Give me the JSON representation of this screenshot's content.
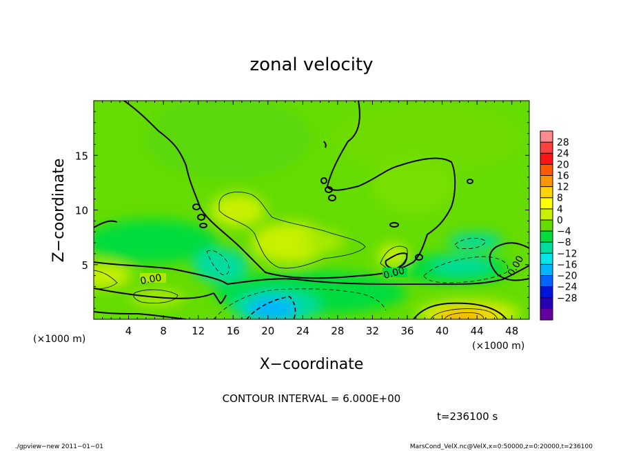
{
  "chart_data": {
    "type": "heatmap",
    "title": "zonal velocity",
    "xlabel": "X−coordinate",
    "ylabel": "Z−coordinate",
    "x_unit_left": "(×1000 m)",
    "x_unit_right": "(×1000 m)",
    "xlim": [
      0,
      50
    ],
    "ylim": [
      0,
      20
    ],
    "x_ticks": [
      "4",
      "8",
      "12",
      "16",
      "20",
      "24",
      "28",
      "32",
      "36",
      "40",
      "44",
      "48"
    ],
    "y_ticks": [
      "5",
      "10",
      "15"
    ],
    "colorbar_labels": [
      "28",
      "24",
      "20",
      "16",
      "12",
      "8",
      "4",
      "0",
      "−4",
      "−8",
      "−12",
      "−16",
      "−20",
      "−24",
      "−28"
    ],
    "colorbar_colors": [
      "#ff8c8c",
      "#ff4040",
      "#ff1414",
      "#ff5a00",
      "#ff9600",
      "#ffd200",
      "#ffff00",
      "#c8f000",
      "#64dc00",
      "#00dc3c",
      "#00dca0",
      "#00e6e6",
      "#00b4ff",
      "#0064ff",
      "#0014dc",
      "#2800b4",
      "#6400a0"
    ],
    "contour_interval_text": "CONTOUR INTERVAL = 6.000E+00",
    "contour_labels": [
      "0.00",
      "0.00",
      "0.00"
    ],
    "time_text": "t=236100 s",
    "footer_left": "./gpview−new   2011−01−01",
    "footer_right": "MarsCond_VelX.nc@VelX,x=0:50000,z=0:20000,t=236100"
  }
}
